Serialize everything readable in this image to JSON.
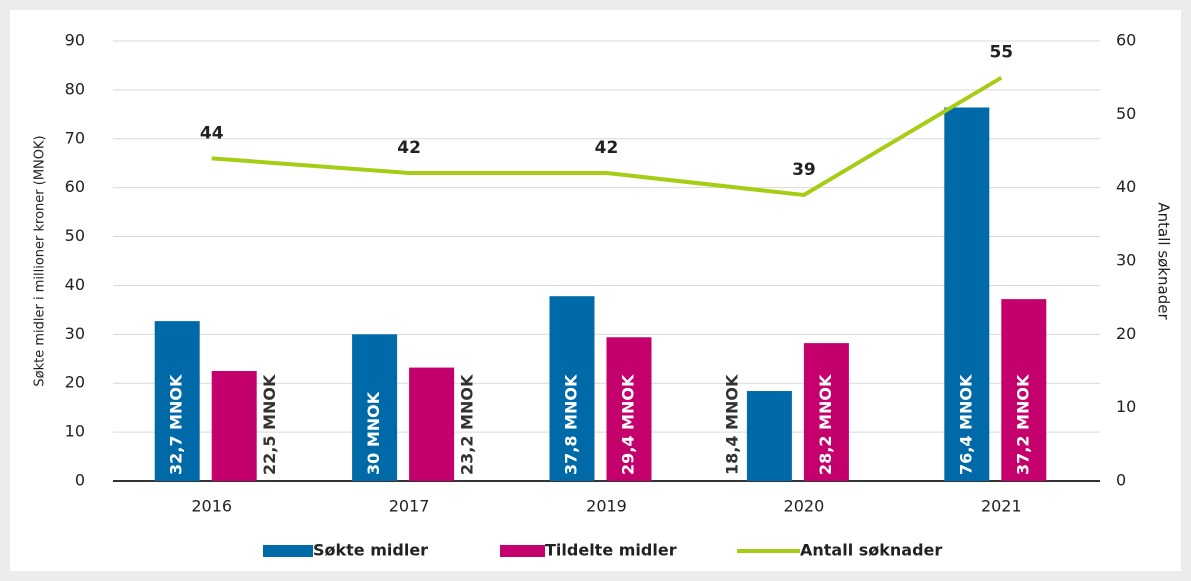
{
  "chart_data": {
    "type": "bar",
    "y_label": "Søkte midler i millioner kroner (MNOK)",
    "y2_label": "Antall søknader",
    "categories": [
      "2016",
      "2017",
      "2019",
      "2020",
      "2021"
    ],
    "series": [
      {
        "name": "Søkte midler",
        "type": "bar",
        "color": "#0069a8",
        "values": [
          32.7,
          30,
          37.8,
          18.4,
          76.4
        ],
        "value_labels": [
          "32,7 MNOK",
          "30 MNOK",
          "37,8 MNOK",
          "18,4 MNOK",
          "76,4 MNOK"
        ]
      },
      {
        "name": "Tildelte midler",
        "type": "bar",
        "color": "#c3006c",
        "values": [
          22.5,
          23.2,
          29.4,
          28.2,
          37.2
        ],
        "value_labels": [
          "22,5 MNOK",
          "23,2 MNOK",
          "29,4 MNOK",
          "28,2 MNOK",
          "37,2 MNOK"
        ]
      },
      {
        "name": "Antall søknader",
        "type": "line",
        "axis": "y2",
        "color": "#a5cd14",
        "values": [
          44,
          42,
          42,
          39,
          55
        ]
      }
    ],
    "ylim": [
      0,
      90
    ],
    "yticks": [
      0,
      10,
      20,
      30,
      40,
      50,
      60,
      70,
      80,
      90
    ],
    "y2lim": [
      0,
      60
    ],
    "y2ticks": [
      0,
      10,
      20,
      30,
      40,
      50,
      60
    ],
    "grid": true,
    "legend": "bottom"
  }
}
